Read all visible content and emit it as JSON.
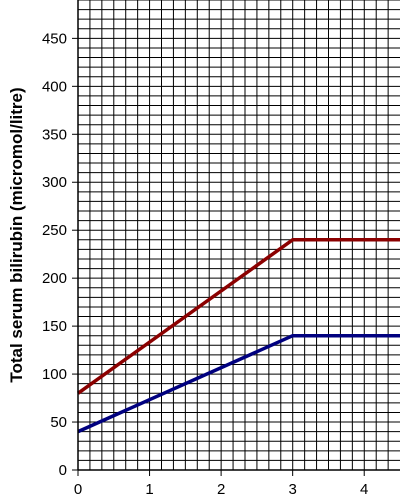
{
  "chart_data": {
    "type": "line",
    "title": "",
    "xlabel": "",
    "ylabel": "Total serum bilirubin  (micromol/litre)",
    "xlim": [
      0,
      4.5
    ],
    "ylim": [
      0,
      490
    ],
    "x_ticks": [
      0,
      1,
      2,
      3,
      4
    ],
    "y_ticks": [
      0,
      50,
      100,
      150,
      200,
      250,
      300,
      350,
      400,
      450
    ],
    "grid": true,
    "grid_minor_x_step": 0.1667,
    "grid_minor_y_step": 10,
    "series": [
      {
        "color": "#8b0000",
        "x": [
          0,
          3,
          4.5
        ],
        "values": [
          80,
          240,
          240
        ]
      },
      {
        "color": "#00007f",
        "x": [
          0,
          3,
          4.5
        ],
        "values": [
          40,
          140,
          140
        ]
      }
    ]
  }
}
